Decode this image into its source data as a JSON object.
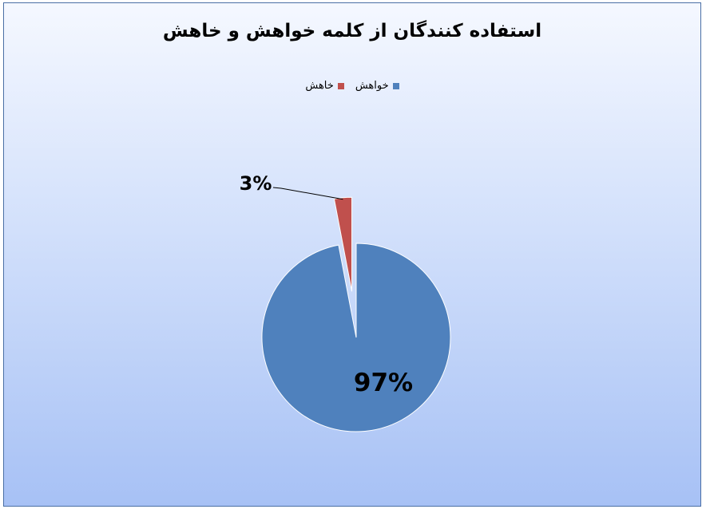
{
  "chart_data": {
    "type": "pie",
    "title": "استفاده کنندگان از کلمه خواهش و خاهش",
    "legend": [
      {
        "name": "خاهش",
        "color": "#c0504d"
      },
      {
        "name": "خواهش",
        "color": "#4f81bd"
      }
    ],
    "slices": [
      {
        "name": "خواهش",
        "value": 97,
        "label": "97%",
        "color": "#4f81bd"
      },
      {
        "name": "خاهش",
        "value": 3,
        "label": "3%",
        "color": "#c0504d",
        "exploded": true
      }
    ],
    "legend_position": "top"
  }
}
